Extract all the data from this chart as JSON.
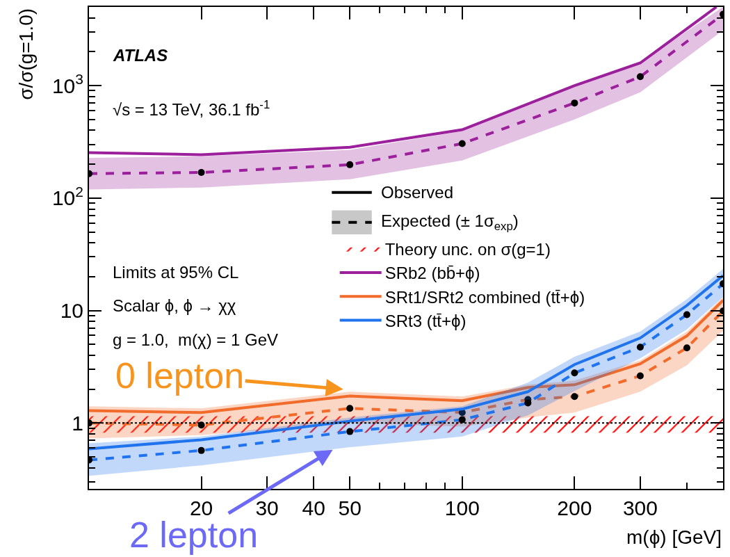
{
  "chart_data": {
    "type": "line",
    "ylabel": "σ/σ(g=1.0)",
    "xlabel": "m(ϕ) [GeV]",
    "log": "xy",
    "xlim": [
      10,
      500
    ],
    "ylim": [
      0.26,
      5000
    ],
    "xticks": [
      20,
      30,
      40,
      50,
      100,
      200,
      300
    ],
    "yticks": [
      1,
      10,
      {
        "value": 100,
        "label": "10$^{2}$"
      },
      {
        "value": 1000,
        "label": "10$^{3}$"
      }
    ],
    "grid": false,
    "legend": "center",
    "marker": "none",
    "x": [
      10,
      20,
      50,
      100,
      150,
      200,
      300,
      400,
      500
    ],
    "series": [
      {
        "name": "SRb2 (bb̄+ϕ)",
        "color": "#9c1f9c",
        "line_style": "solid",
        "x": [
          10,
          20,
          50,
          100,
          200,
          300,
          480
        ],
        "values": [
          253,
          243,
          283,
          405,
          1000,
          1590,
          5000
        ]
      },
      {
        "color": "#9c1f9c",
        "line_style": "dashed",
        "marker": "circle",
        "colors": [
          "#000000",
          "#000000",
          "#000000",
          "#000000",
          "#000000",
          "#000000",
          "#000000"
        ],
        "x": [
          10,
          20,
          50,
          100,
          200,
          300,
          500
        ],
        "values": [
          165,
          169,
          198,
          305,
          700,
          1200,
          4300
        ],
        "lower": [
          119,
          124,
          147,
          216,
          500,
          870,
          3100
        ],
        "upper": [
          228,
          235,
          268,
          394,
          990,
          1620,
          5000
        ]
      },
      {
        "name": "SRt1/SRt2 combined (tt̄+ϕ)",
        "color": "#f26b2a",
        "line_style": "solid",
        "values": [
          1.29,
          1.24,
          1.74,
          1.58,
          2.07,
          2.19,
          3.36,
          5.95,
          12.3
        ]
      },
      {
        "color": "#f26b2a",
        "line_style": "dashed",
        "marker": "circle",
        "colors": [
          "#000000",
          "#000000",
          "#000000",
          "#000000",
          "#000000",
          "#000000",
          "#000000",
          "#000000",
          "#000000"
        ],
        "values": [
          1.0,
          0.96,
          1.35,
          1.24,
          1.62,
          1.72,
          2.63,
          4.66,
          9.9
        ],
        "lower": [
          0.73,
          0.78,
          1.0,
          0.93,
          1.12,
          1.24,
          1.9,
          3.27,
          6.6
        ],
        "upper": [
          1.41,
          1.35,
          1.9,
          1.72,
          2.19,
          2.39,
          3.6,
          6.5,
          13.2
        ]
      },
      {
        "name": "SRt3 (tt̄+ϕ)",
        "color": "#1f73ee",
        "line_style": "solid",
        "values": [
          0.59,
          0.71,
          1.04,
          1.33,
          1.9,
          3.31,
          5.7,
          11.1,
          20.5
        ]
      },
      {
        "color": "#1f73ee",
        "line_style": "dashed",
        "marker": "circle",
        "colors": [
          "#000000",
          "#000000",
          "#000000",
          "#000000",
          "#000000",
          "#000000",
          "#000000",
          "#000000",
          "#000000"
        ],
        "values": [
          0.47,
          0.57,
          0.84,
          1.07,
          1.51,
          2.79,
          4.73,
          9.2,
          17.3
        ],
        "lower": [
          0.34,
          0.42,
          0.61,
          0.76,
          1.17,
          1.93,
          3.76,
          6.8,
          13.2
        ],
        "upper": [
          0.66,
          0.76,
          1.12,
          1.41,
          2.29,
          3.88,
          6.5,
          12.6,
          23.4
        ]
      }
    ],
    "bands": [
      {
        "axis": "y",
        "from": 0.82,
        "to": 1.15,
        "label": "Theory unc. on σ(g=1)",
        "color": "#ff0000"
      }
    ],
    "ref_lines": [
      {
        "axis": "y",
        "value": 1,
        "color": "#000000",
        "line_style": "dotted"
      }
    ],
    "annotations": [
      "ATLAS",
      "√s = 13 TeV, 36.1 fb$^{-1}$",
      "Limits at 95% CL",
      "Scalar ϕ, ϕ → χχ",
      "g = 1.0,  m(χ) = 1 GeV",
      {
        "text": "0 lepton",
        "x": 48,
        "y": 2.0
      },
      {
        "text": "2 lepton",
        "x": 45,
        "y": 0.58
      },
      "Observed",
      "Expected (± 1σ$_{exp}$)"
    ]
  }
}
